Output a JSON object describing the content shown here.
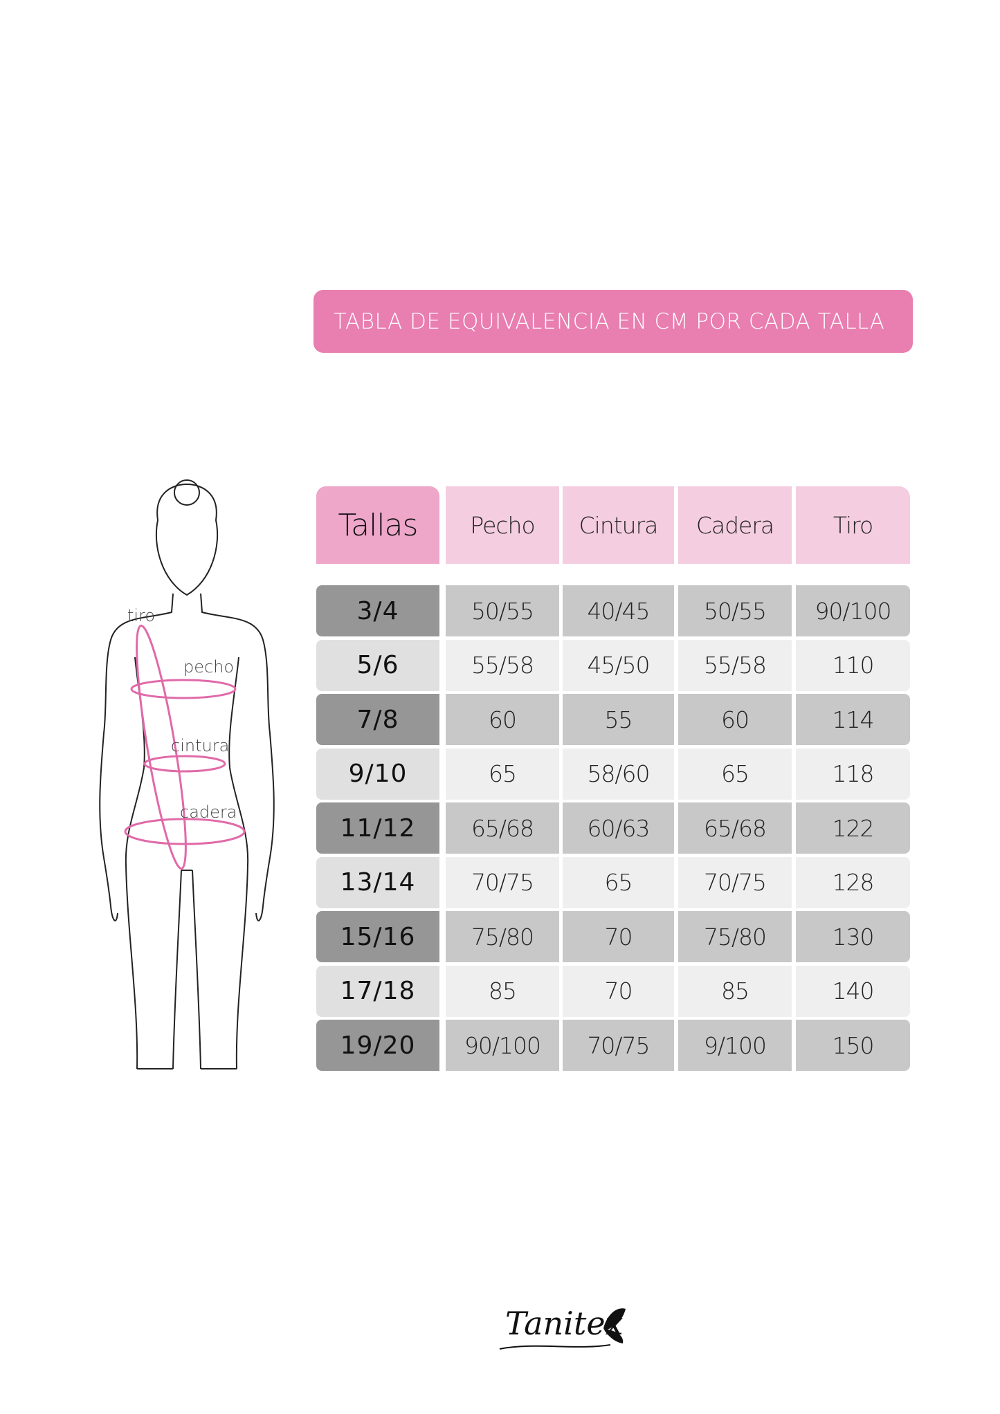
{
  "title": "TABLA DE EQUIVALENCIA EN CM POR CADA TALLA",
  "table": {
    "headers": [
      "Tallas",
      "Pecho",
      "Cintura",
      "Cadera",
      "Tiro"
    ],
    "rows": [
      [
        "3/4",
        "50/55",
        "40/45",
        "50/55",
        "90/100"
      ],
      [
        "5/6",
        "55/58",
        "45/50",
        "55/58",
        "110"
      ],
      [
        "7/8",
        "60",
        "55",
        "60",
        "114"
      ],
      [
        "9/10",
        "65",
        "58/60",
        "65",
        "118"
      ],
      [
        "11/12",
        "65/68",
        "60/63",
        "65/68",
        "122"
      ],
      [
        "13/14",
        "70/75",
        "65",
        "70/75",
        "128"
      ],
      [
        "15/16",
        "75/80",
        "70",
        "75/80",
        "130"
      ],
      [
        "17/18",
        "85",
        "70",
        "85",
        "140"
      ],
      [
        "19/20",
        "90/100",
        "70/75",
        "9/100",
        "150"
      ]
    ]
  },
  "figure": {
    "labels": {
      "tiro": "tiro",
      "pecho": "pecho",
      "cintura": "cintura",
      "cadera": "cadera"
    }
  },
  "logo": {
    "text": "Tanitex"
  },
  "colors": {
    "banner": "#e97eb0",
    "header_first": "#eea6c9",
    "header": "#f5cde0",
    "row_dark_size": "#969696",
    "row_dark": "#c8c8c8",
    "row_light_size": "#e0e0e0",
    "row_light": "#efefef",
    "measure_line": "#e06aa8"
  }
}
